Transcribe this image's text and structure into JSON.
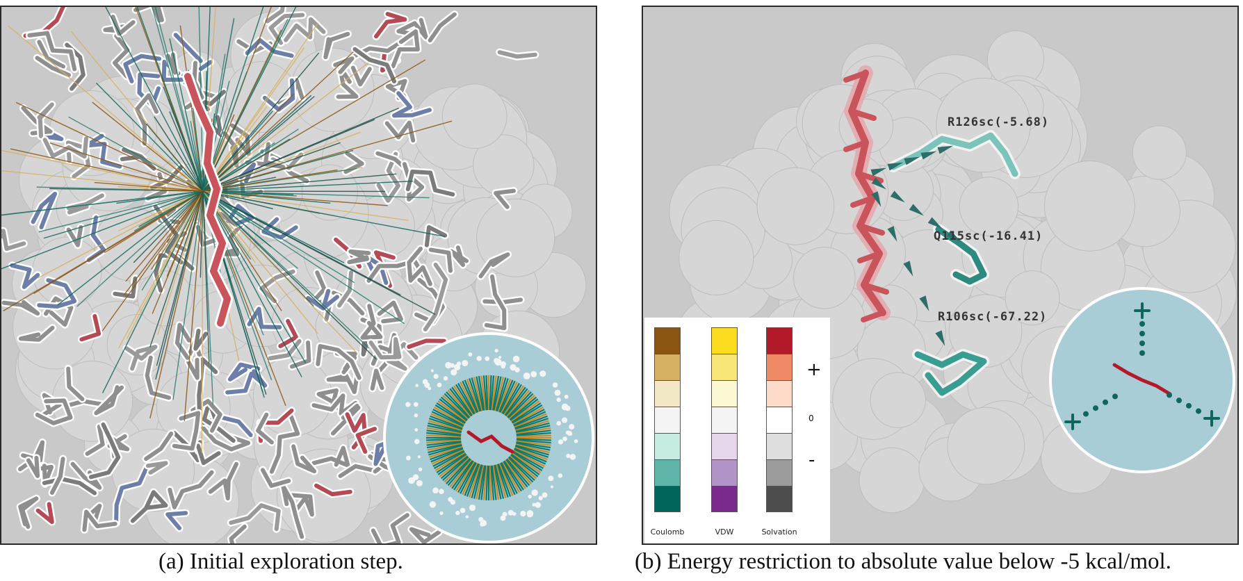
{
  "panel_a": {
    "caption": "(a) Initial exploration step."
  },
  "panel_b": {
    "caption": "(b) Energy restriction to absolute value below -5 kcal/mol.",
    "residue_labels": [
      "R126sc(-5.68)",
      "Q115sc(-16.41)",
      "R106sc(-67.22)"
    ],
    "legend": {
      "columns": [
        {
          "name": "Coulomb",
          "colors": [
            "#8a5512",
            "#d7b163",
            "#f4e7c6",
            "#f4f4f4",
            "#c6ebe3",
            "#5fb5aa",
            "#00665c"
          ]
        },
        {
          "name": "VDW",
          "colors": [
            "#fcdc1e",
            "#f8e678",
            "#fdf8d4",
            "#f4f4f4",
            "#e6d7ec",
            "#b294c9",
            "#7a2a8d"
          ]
        },
        {
          "name": "Solvation",
          "colors": [
            "#b21a2a",
            "#ee8a65",
            "#fddbc8",
            "#ffffff",
            "#dddddd",
            "#9c9c9c",
            "#4d4d4d"
          ]
        }
      ],
      "plus": "+",
      "zero": "0",
      "minus": "-"
    }
  },
  "colors": {
    "ligand": "#c9545c",
    "positive_residue": "#5fb5aa",
    "dark_teal": "#0e665c",
    "inset_bg": "#a9cdd6",
    "surface": "#d6d6d6",
    "background": "#c9c9c9"
  }
}
